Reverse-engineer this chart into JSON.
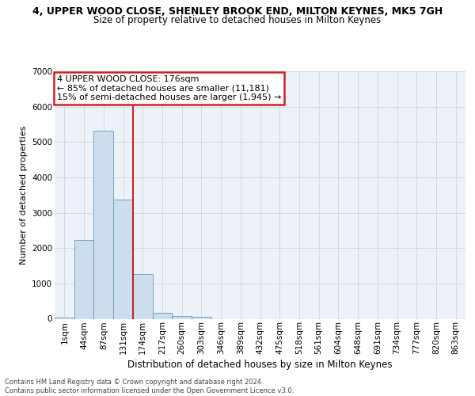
{
  "title": "4, UPPER WOOD CLOSE, SHENLEY BROOK END, MILTON KEYNES, MK5 7GH",
  "subtitle": "Size of property relative to detached houses in Milton Keynes",
  "xlabel": "Distribution of detached houses by size in Milton Keynes",
  "ylabel": "Number of detached properties",
  "footer_line1": "Contains HM Land Registry data © Crown copyright and database right 2024.",
  "footer_line2": "Contains public sector information licensed under the Open Government Licence v3.0.",
  "annotation_title": "4 UPPER WOOD CLOSE: 176sqm",
  "annotation_line2": "← 85% of detached houses are smaller (11,181)",
  "annotation_line3": "15% of semi-detached houses are larger (1,945) →",
  "bar_color": "#ccdded",
  "bar_edge_color": "#6699bb",
  "vline_color": "#cc2222",
  "annotation_box_facecolor": "#ffffff",
  "annotation_box_edgecolor": "#cc2222",
  "background_color": "#edf2f8",
  "grid_color": "#c5cfe0",
  "fig_facecolor": "#ffffff",
  "categories": [
    "1sqm",
    "44sqm",
    "87sqm",
    "131sqm",
    "174sqm",
    "217sqm",
    "260sqm",
    "303sqm",
    "346sqm",
    "389sqm",
    "432sqm",
    "475sqm",
    "518sqm",
    "561sqm",
    "604sqm",
    "648sqm",
    "691sqm",
    "734sqm",
    "777sqm",
    "820sqm",
    "863sqm"
  ],
  "values": [
    28,
    2240,
    5310,
    3380,
    1275,
    170,
    85,
    50,
    0,
    0,
    0,
    0,
    0,
    0,
    0,
    0,
    0,
    0,
    0,
    0,
    0
  ],
  "ylim": [
    0,
    7000
  ],
  "yticks": [
    0,
    1000,
    2000,
    3000,
    4000,
    5000,
    6000,
    7000
  ],
  "vline_x": 3.5,
  "title_fontsize": 9,
  "subtitle_fontsize": 8.5,
  "ylabel_fontsize": 8,
  "xlabel_fontsize": 8.5,
  "tick_fontsize": 7.5,
  "footer_fontsize": 6,
  "annotation_fontsize": 8
}
